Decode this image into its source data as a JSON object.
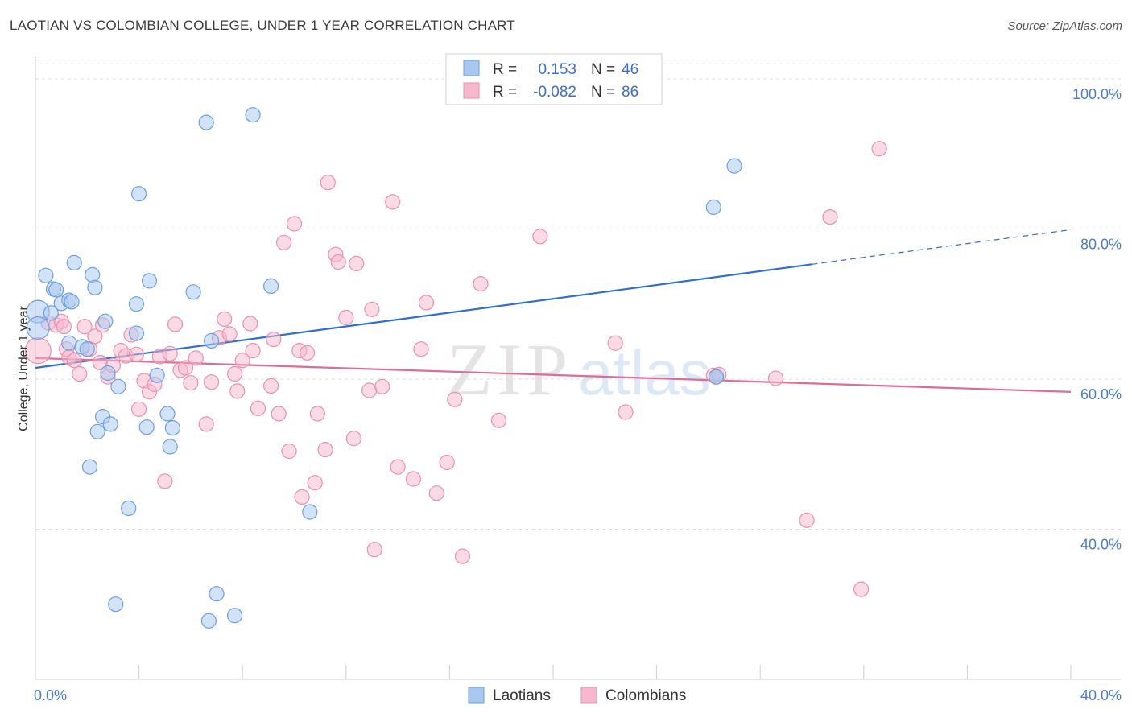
{
  "title": "LAOTIAN VS COLOMBIAN COLLEGE, UNDER 1 YEAR CORRELATION CHART",
  "source": "Source: ZipAtlas.com",
  "watermark": {
    "zip": "ZIP",
    "atlas": "atlas"
  },
  "colors": {
    "laotians_fill": "#a8c8f0",
    "laotians_stroke": "#6d9ee0",
    "laotians_line": "#2f6fd1",
    "colombians_fill": "#f5b8cc",
    "colombians_stroke": "#eb8fae",
    "colombians_line": "#e06a98",
    "grid": "#dcdcdc",
    "tick_text": "#4a7cc9"
  },
  "legend": {
    "rows": [
      {
        "r_label": "R =",
        "r_value": "0.153",
        "n_label": "N =",
        "n_value": "46"
      },
      {
        "r_label": "R =",
        "r_value": "-0.082",
        "n_label": "N =",
        "n_value": "86"
      }
    ]
  },
  "chart_data": {
    "type": "scatter",
    "title": "LAOTIAN VS COLOMBIAN COLLEGE, UNDER 1 YEAR CORRELATION CHART",
    "xlabel": "",
    "ylabel": "College, Under 1 year",
    "xlim": [
      0,
      40
    ],
    "ylim": [
      20,
      103
    ],
    "x_tick_labels": [
      "0.0%",
      "40.0%"
    ],
    "y_ticks": [
      40,
      60,
      80,
      100
    ],
    "y_tick_labels": [
      "40.0%",
      "60.0%",
      "80.0%",
      "100.0%"
    ],
    "legend_position": "top-center",
    "series": [
      {
        "name": "Laotians",
        "r": 0.153,
        "n": 46,
        "trend": {
          "x_start": 0,
          "y_start": 61.5,
          "x_solid_end": 30,
          "y_solid_end": 75.3,
          "x_end": 40,
          "y_end": 79.9
        },
        "points": [
          [
            0.1,
            69.0,
            14
          ],
          [
            0.1,
            66.8,
            14
          ],
          [
            0.4,
            73.8,
            9
          ],
          [
            0.6,
            68.8,
            9
          ],
          [
            0.7,
            72.0,
            9
          ],
          [
            0.8,
            71.9,
            9
          ],
          [
            1.0,
            70.1,
            9
          ],
          [
            1.3,
            70.5,
            9
          ],
          [
            1.4,
            70.3,
            9
          ],
          [
            1.5,
            75.5,
            9
          ],
          [
            1.3,
            64.8,
            9
          ],
          [
            1.8,
            64.3,
            9
          ],
          [
            2.0,
            64.0,
            9
          ],
          [
            2.2,
            73.9,
            9
          ],
          [
            2.3,
            72.2,
            9
          ],
          [
            2.1,
            48.3,
            9
          ],
          [
            2.4,
            53.0,
            9
          ],
          [
            2.6,
            55.0,
            9
          ],
          [
            2.7,
            67.7,
            9
          ],
          [
            2.8,
            60.8,
            9
          ],
          [
            2.9,
            54.0,
            9
          ],
          [
            3.1,
            30.0,
            9
          ],
          [
            3.2,
            59.0,
            9
          ],
          [
            3.6,
            42.8,
            9
          ],
          [
            3.9,
            70.0,
            9
          ],
          [
            3.9,
            66.1,
            9
          ],
          [
            4.0,
            84.7,
            9
          ],
          [
            4.3,
            53.6,
            9
          ],
          [
            4.4,
            73.1,
            9
          ],
          [
            4.7,
            60.5,
            9
          ],
          [
            5.1,
            55.4,
            9
          ],
          [
            5.2,
            51.0,
            9
          ],
          [
            5.3,
            53.5,
            9
          ],
          [
            6.1,
            71.6,
            9
          ],
          [
            6.6,
            94.2,
            9
          ],
          [
            6.7,
            27.8,
            9
          ],
          [
            6.8,
            65.1,
            9
          ],
          [
            7.0,
            31.4,
            9
          ],
          [
            7.7,
            28.5,
            9
          ],
          [
            8.4,
            95.2,
            9
          ],
          [
            9.1,
            72.4,
            9
          ],
          [
            10.6,
            42.3,
            9
          ],
          [
            26.2,
            82.9,
            9
          ],
          [
            26.3,
            60.3,
            9
          ],
          [
            26.3,
            60.3,
            9
          ],
          [
            27.0,
            88.4,
            9
          ]
        ]
      },
      {
        "name": "Colombians",
        "r": -0.082,
        "n": 86,
        "trend": {
          "x_start": 0,
          "y_start": 62.8,
          "x_end": 40,
          "y_end": 58.3
        },
        "points": [
          [
            0.1,
            63.8,
            16
          ],
          [
            0.5,
            67.5,
            9
          ],
          [
            0.8,
            67.2,
            9
          ],
          [
            1.0,
            67.7,
            9
          ],
          [
            1.1,
            67.0,
            9
          ],
          [
            1.2,
            64.0,
            9
          ],
          [
            1.3,
            62.9,
            9
          ],
          [
            1.5,
            62.5,
            9
          ],
          [
            1.7,
            60.7,
            9
          ],
          [
            1.9,
            67.0,
            9
          ],
          [
            2.1,
            64.0,
            9
          ],
          [
            2.3,
            65.7,
            9
          ],
          [
            2.5,
            62.2,
            9
          ],
          [
            2.6,
            67.2,
            9
          ],
          [
            2.8,
            60.3,
            9
          ],
          [
            3.0,
            61.8,
            9
          ],
          [
            3.3,
            63.8,
            9
          ],
          [
            3.5,
            63.1,
            9
          ],
          [
            3.7,
            65.9,
            9
          ],
          [
            3.9,
            63.3,
            9
          ],
          [
            4.0,
            56.0,
            9
          ],
          [
            4.2,
            59.8,
            9
          ],
          [
            4.4,
            58.3,
            9
          ],
          [
            4.6,
            59.3,
            9
          ],
          [
            4.8,
            63.0,
            9
          ],
          [
            5.0,
            46.4,
            9
          ],
          [
            5.2,
            63.4,
            9
          ],
          [
            5.4,
            67.3,
            9
          ],
          [
            5.6,
            61.2,
            9
          ],
          [
            5.8,
            61.5,
            9
          ],
          [
            6.0,
            59.5,
            9
          ],
          [
            6.2,
            62.8,
            9
          ],
          [
            6.6,
            54.0,
            9
          ],
          [
            6.8,
            59.6,
            9
          ],
          [
            7.1,
            65.5,
            9
          ],
          [
            7.3,
            68.0,
            9
          ],
          [
            7.5,
            66.0,
            9
          ],
          [
            7.7,
            60.7,
            9
          ],
          [
            7.8,
            58.4,
            9
          ],
          [
            8.0,
            62.5,
            9
          ],
          [
            8.3,
            67.4,
            9
          ],
          [
            8.4,
            63.8,
            9
          ],
          [
            8.6,
            56.1,
            9
          ],
          [
            9.1,
            59.1,
            9
          ],
          [
            9.2,
            65.3,
            9
          ],
          [
            9.4,
            55.4,
            9
          ],
          [
            9.8,
            50.4,
            9
          ],
          [
            10.0,
            80.7,
            9
          ],
          [
            10.2,
            63.8,
            9
          ],
          [
            10.3,
            44.3,
            9
          ],
          [
            10.5,
            63.5,
            9
          ],
          [
            9.6,
            78.2,
            9
          ],
          [
            10.8,
            46.2,
            9
          ],
          [
            10.9,
            55.4,
            9
          ],
          [
            11.2,
            50.6,
            9
          ],
          [
            11.3,
            86.2,
            9
          ],
          [
            11.6,
            76.6,
            9
          ],
          [
            11.7,
            75.6,
            9
          ],
          [
            12.0,
            68.2,
            9
          ],
          [
            12.3,
            52.1,
            9
          ],
          [
            12.4,
            75.4,
            9
          ],
          [
            12.9,
            58.5,
            9
          ],
          [
            13.0,
            69.3,
            9
          ],
          [
            13.1,
            37.3,
            9
          ],
          [
            13.4,
            59.0,
            9
          ],
          [
            13.8,
            83.6,
            9
          ],
          [
            14.0,
            48.3,
            9
          ],
          [
            14.6,
            46.7,
            9
          ],
          [
            14.9,
            64.0,
            9
          ],
          [
            15.1,
            70.2,
            9
          ],
          [
            15.5,
            44.8,
            9
          ],
          [
            15.9,
            48.9,
            9
          ],
          [
            16.2,
            57.3,
            9
          ],
          [
            16.5,
            36.4,
            9
          ],
          [
            17.2,
            72.7,
            9
          ],
          [
            17.9,
            54.5,
            9
          ],
          [
            19.5,
            79.0,
            9
          ],
          [
            22.4,
            64.8,
            9
          ],
          [
            22.8,
            55.6,
            9
          ],
          [
            26.2,
            60.5,
            9
          ],
          [
            26.4,
            60.6,
            9
          ],
          [
            28.6,
            60.1,
            9
          ],
          [
            29.8,
            41.2,
            9
          ],
          [
            30.7,
            81.6,
            9
          ],
          [
            31.9,
            32.0,
            9
          ],
          [
            32.6,
            90.7,
            9
          ]
        ]
      }
    ]
  },
  "bottom_legend": {
    "items": [
      "Laotians",
      "Colombians"
    ]
  }
}
